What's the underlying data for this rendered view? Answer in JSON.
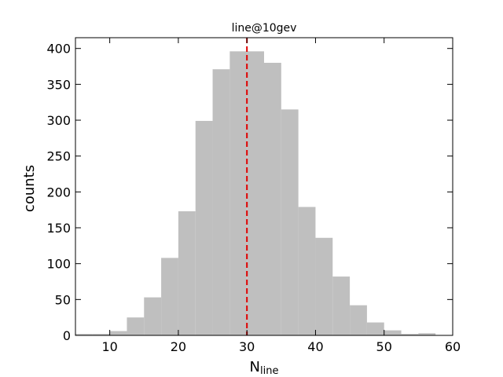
{
  "chart_data": {
    "type": "histogram",
    "title": "line@10gev",
    "xlabel": "N",
    "xlabel_subscript": "line",
    "ylabel": "counts",
    "bins": [
      5,
      7.5,
      10,
      12.5,
      15,
      17.5,
      20,
      22.5,
      25,
      27.5,
      30,
      32.5,
      35,
      37.5,
      40,
      42.5,
      45,
      47.5,
      50,
      52.5,
      55,
      57.5
    ],
    "values": [
      2,
      2,
      6,
      25,
      53,
      108,
      173,
      299,
      371,
      396,
      396,
      380,
      315,
      179,
      136,
      82,
      42,
      18,
      7,
      2,
      3
    ],
    "color": "#bfbfbf",
    "xlim": [
      5,
      60
    ],
    "ylim": [
      0,
      415
    ],
    "xticks": [
      10,
      20,
      30,
      40,
      50,
      60
    ],
    "yticks": [
      0,
      50,
      100,
      150,
      200,
      250,
      300,
      350,
      400
    ],
    "vlines": [
      {
        "x": 30,
        "color": "#e00000",
        "style": "dashed"
      }
    ]
  }
}
